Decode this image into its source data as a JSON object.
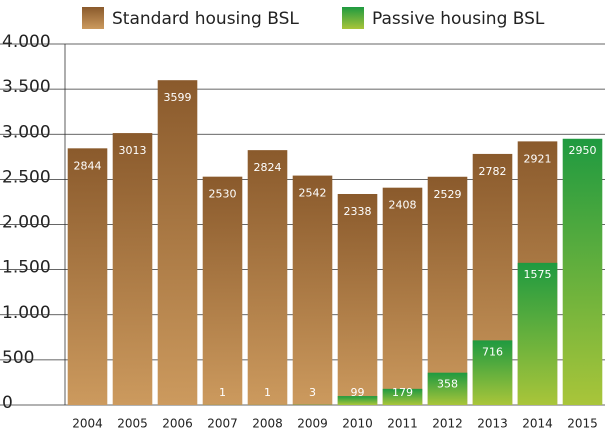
{
  "chart_data": {
    "type": "bar",
    "categories": [
      "2004",
      "2005",
      "2006",
      "2007",
      "2008",
      "2009",
      "2010",
      "2011",
      "2012",
      "2013",
      "2014",
      "2015"
    ],
    "series": [
      {
        "name": "Standard housing BSL",
        "color": "#a0703a",
        "values": [
          2844,
          3013,
          3599,
          2530,
          2824,
          2542,
          2338,
          2408,
          2529,
          2782,
          2921,
          null
        ]
      },
      {
        "name": "Passive housing BSL",
        "color": "#4caf3a",
        "values": [
          null,
          null,
          null,
          1,
          1,
          3,
          99,
          179,
          358,
          716,
          1575,
          2950
        ]
      }
    ],
    "ylim": [
      0,
      4000
    ],
    "yticks": [
      0,
      500,
      {
        "value": 1000,
        "label": "1.000"
      },
      {
        "value": 1500,
        "label": "1.500"
      },
      {
        "value": 2000,
        "label": "2.000"
      },
      {
        "value": 2500,
        "label": "2.500"
      },
      {
        "value": 3000,
        "label": "3.000"
      },
      {
        "value": 3500,
        "label": "3.500"
      },
      {
        "value": 4000,
        "label": "4.000"
      }
    ],
    "grid": true,
    "legend": "top"
  }
}
